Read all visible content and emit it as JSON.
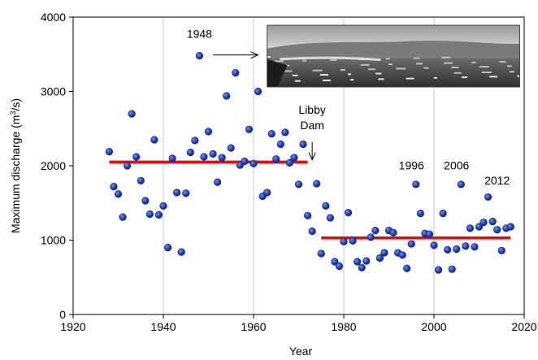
{
  "chart_data": {
    "type": "scatter",
    "xlabel": "Year",
    "ylabel_main": "Maximum discharge (m",
    "ylabel_sup": "3",
    "ylabel_tail": "/s)",
    "xlim": [
      1920,
      2020
    ],
    "ylim": [
      0,
      4000
    ],
    "xticks": [
      1920,
      1940,
      1960,
      1980,
      2000,
      2020
    ],
    "yticks": [
      0,
      1000,
      2000,
      3000,
      4000
    ],
    "grid": "vertical",
    "point_color": "#1f3fbf",
    "trend_color": "#ff0000",
    "points": [
      [
        1928,
        2190
      ],
      [
        1929,
        1720
      ],
      [
        1930,
        1620
      ],
      [
        1931,
        1310
      ],
      [
        1932,
        2000
      ],
      [
        1933,
        2700
      ],
      [
        1934,
        2120
      ],
      [
        1935,
        1800
      ],
      [
        1936,
        1530
      ],
      [
        1937,
        1350
      ],
      [
        1938,
        2350
      ],
      [
        1939,
        1340
      ],
      [
        1940,
        1460
      ],
      [
        1941,
        900
      ],
      [
        1942,
        2100
      ],
      [
        1943,
        1640
      ],
      [
        1944,
        840
      ],
      [
        1945,
        1630
      ],
      [
        1946,
        2180
      ],
      [
        1947,
        2340
      ],
      [
        1948,
        3480
      ],
      [
        1949,
        2120
      ],
      [
        1950,
        2460
      ],
      [
        1951,
        2160
      ],
      [
        1952,
        1780
      ],
      [
        1953,
        2110
      ],
      [
        1954,
        2940
      ],
      [
        1955,
        2240
      ],
      [
        1956,
        3250
      ],
      [
        1957,
        2010
      ],
      [
        1958,
        2060
      ],
      [
        1959,
        2490
      ],
      [
        1960,
        2030
      ],
      [
        1961,
        3000
      ],
      [
        1962,
        1590
      ],
      [
        1963,
        1640
      ],
      [
        1964,
        2430
      ],
      [
        1965,
        2090
      ],
      [
        1966,
        2290
      ],
      [
        1967,
        2450
      ],
      [
        1968,
        2040
      ],
      [
        1969,
        2110
      ],
      [
        1970,
        1750
      ],
      [
        1971,
        2290
      ],
      [
        1972,
        1330
      ],
      [
        1973,
        1120
      ],
      [
        1974,
        1760
      ],
      [
        1975,
        820
      ],
      [
        1976,
        1460
      ],
      [
        1977,
        1300
      ],
      [
        1978,
        710
      ],
      [
        1979,
        650
      ],
      [
        1980,
        980
      ],
      [
        1981,
        1370
      ],
      [
        1982,
        990
      ],
      [
        1983,
        710
      ],
      [
        1984,
        630
      ],
      [
        1985,
        720
      ],
      [
        1986,
        1040
      ],
      [
        1987,
        1130
      ],
      [
        1988,
        760
      ],
      [
        1989,
        830
      ],
      [
        1990,
        1130
      ],
      [
        1991,
        1100
      ],
      [
        1992,
        830
      ],
      [
        1993,
        800
      ],
      [
        1994,
        620
      ],
      [
        1995,
        950
      ],
      [
        1996,
        1750
      ],
      [
        1997,
        1360
      ],
      [
        1998,
        1090
      ],
      [
        1999,
        1080
      ],
      [
        2000,
        930
      ],
      [
        2001,
        600
      ],
      [
        2002,
        1360
      ],
      [
        2003,
        870
      ],
      [
        2004,
        610
      ],
      [
        2005,
        880
      ],
      [
        2006,
        1750
      ],
      [
        2007,
        920
      ],
      [
        2008,
        1160
      ],
      [
        2009,
        910
      ],
      [
        2010,
        1180
      ],
      [
        2011,
        1240
      ],
      [
        2012,
        1580
      ],
      [
        2013,
        1250
      ],
      [
        2014,
        1140
      ],
      [
        2015,
        860
      ],
      [
        2016,
        1160
      ],
      [
        2017,
        1180
      ]
    ],
    "trend_lines": [
      {
        "x": [
          1928,
          1972
        ],
        "y": [
          2050,
          2050
        ]
      },
      {
        "x": [
          1975,
          2017
        ],
        "y": [
          1030,
          1030
        ]
      }
    ],
    "annotations": [
      {
        "id": "ann-1948",
        "text": "1948",
        "x": 1948,
        "y": 3720,
        "arrow": {
          "from": [
            1951,
            3490
          ],
          "to": [
            1961,
            3490
          ]
        }
      },
      {
        "id": "ann-libby",
        "lines": [
          "Libby",
          "Dam"
        ],
        "x": 1973,
        "y": 2700,
        "arrow": {
          "from": [
            1973,
            2320
          ],
          "to": [
            1973,
            2080
          ]
        }
      },
      {
        "id": "ann-1996",
        "text": "1996",
        "x": 1995,
        "y": 1950
      },
      {
        "id": "ann-2006",
        "text": "2006",
        "x": 2005,
        "y": 1950
      },
      {
        "id": "ann-2012",
        "text": "2012",
        "x": 2014,
        "y": 1750
      }
    ]
  },
  "inset_photo": {
    "x_range": [
      1963,
      2019
    ],
    "y_range": [
      3060,
      3890
    ]
  }
}
